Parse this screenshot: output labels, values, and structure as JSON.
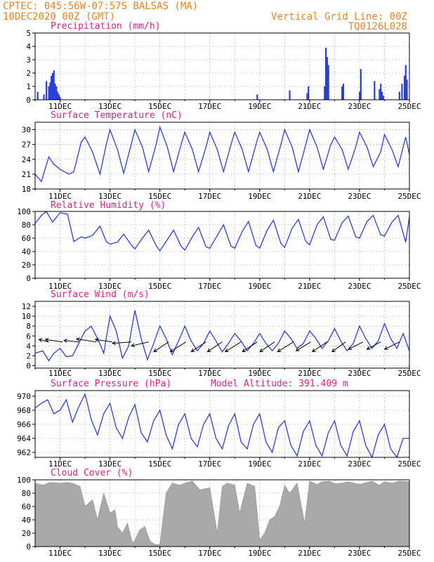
{
  "header": {
    "line1": "CPTEC:   045:56W-07:57S   BALSAS (MA)",
    "line2": "10DEC2020 00Z (GMT)",
    "right1": "Vertical Grid Line: 00Z",
    "right2": "TQ0126L028",
    "title_color": "#e8832a"
  },
  "colors": {
    "title": "#e8832a",
    "panel_title": "#e0208a",
    "series": "#2a3fd8",
    "cloud_fill": "#a9a9a9",
    "grid": "#b0b0b0",
    "wind_arrow": "#000000"
  },
  "x_ticks": [
    "11DEC",
    "13DEC",
    "15DEC",
    "17DEC",
    "19DEC",
    "21DEC",
    "23DEC",
    "25DEC"
  ],
  "chart_data": [
    {
      "id": "precip",
      "type": "bar",
      "title": "Precipitation (mm/h)",
      "ylim": [
        0,
        5
      ],
      "yticks": [
        0,
        1,
        2,
        3,
        4,
        5
      ],
      "x_range": [
        10.0,
        25.0
      ],
      "x": [
        10.1,
        10.35,
        10.45,
        10.55,
        10.6,
        10.65,
        10.7,
        10.75,
        10.8,
        10.85,
        10.9,
        10.95,
        11.0,
        18.9,
        20.2,
        20.9,
        20.95,
        21.6,
        21.65,
        21.7,
        21.75,
        22.3,
        22.35,
        23.0,
        23.05,
        23.6,
        23.8,
        23.85,
        23.9,
        23.95,
        24.6,
        24.7,
        24.8,
        24.85,
        24.9
      ],
      "values": [
        0.6,
        0.4,
        1.4,
        1.0,
        1.3,
        1.8,
        2.0,
        2.2,
        1.2,
        1.0,
        0.6,
        0.4,
        0.2,
        0.4,
        0.7,
        0.5,
        1.0,
        1.0,
        3.9,
        3.2,
        2.6,
        1.0,
        1.2,
        0.6,
        2.3,
        1.4,
        0.8,
        1.2,
        0.6,
        0.3,
        0.6,
        1.2,
        1.8,
        2.6,
        1.5
      ]
    },
    {
      "id": "temp",
      "type": "line",
      "title": "Surface Temperature (nC)",
      "ylim": [
        18,
        31.5
      ],
      "yticks": [
        18,
        21,
        24,
        27,
        30
      ],
      "x_range": [
        10.0,
        25.0
      ],
      "x": [
        10.0,
        10.25,
        10.55,
        10.75,
        11.0,
        11.35,
        11.55,
        11.85,
        12.0,
        12.3,
        12.6,
        12.85,
        13.0,
        13.3,
        13.55,
        13.85,
        14.0,
        14.3,
        14.55,
        14.85,
        15.0,
        15.3,
        15.55,
        15.85,
        16.0,
        16.3,
        16.55,
        16.85,
        17.0,
        17.3,
        17.55,
        17.85,
        18.0,
        18.3,
        18.55,
        18.85,
        19.0,
        19.3,
        19.55,
        19.85,
        20.0,
        20.3,
        20.55,
        20.85,
        21.0,
        21.3,
        21.55,
        21.85,
        22.0,
        22.3,
        22.55,
        22.85,
        23.0,
        23.3,
        23.55,
        23.85,
        24.0,
        24.3,
        24.55,
        24.85,
        25.0
      ],
      "values": [
        21.0,
        19.5,
        24.5,
        23.0,
        22.0,
        21.0,
        21.5,
        27.5,
        28.5,
        25.5,
        21.0,
        27.0,
        30.0,
        26.0,
        21.2,
        27.0,
        30.0,
        26.5,
        21.5,
        27.0,
        30.5,
        26.5,
        21.5,
        27.0,
        29.5,
        26.0,
        21.5,
        26.5,
        29.5,
        26.0,
        21.5,
        27.0,
        29.5,
        26.0,
        21.5,
        27.0,
        29.5,
        26.0,
        21.5,
        27.0,
        30.0,
        26.5,
        21.5,
        27.0,
        30.0,
        26.5,
        22.0,
        27.0,
        28.5,
        26.0,
        22.0,
        26.5,
        29.5,
        26.5,
        22.5,
        25.5,
        29.0,
        26.0,
        22.5,
        28.5,
        25.0
      ]
    },
    {
      "id": "rh",
      "type": "line",
      "title": "Relative Humidity (%)",
      "ylim": [
        0,
        100
      ],
      "yticks": [
        0,
        20,
        40,
        60,
        80,
        100
      ],
      "x_range": [
        10.0,
        25.0
      ],
      "x": [
        10.0,
        10.25,
        10.45,
        10.7,
        11.0,
        11.3,
        11.55,
        11.85,
        12.0,
        12.3,
        12.6,
        12.85,
        13.0,
        13.3,
        13.55,
        13.85,
        14.0,
        14.3,
        14.55,
        14.85,
        15.0,
        15.3,
        15.55,
        15.85,
        16.0,
        16.3,
        16.55,
        16.85,
        17.0,
        17.3,
        17.55,
        17.85,
        18.0,
        18.3,
        18.55,
        18.85,
        19.0,
        19.3,
        19.55,
        19.85,
        20.0,
        20.3,
        20.55,
        20.85,
        21.0,
        21.3,
        21.55,
        21.85,
        22.0,
        22.3,
        22.55,
        22.85,
        23.0,
        23.3,
        23.55,
        23.85,
        24.0,
        24.3,
        24.55,
        24.85,
        25.0
      ],
      "values": [
        82,
        94,
        100,
        84,
        98,
        96,
        55,
        62,
        60,
        64,
        78,
        55,
        51,
        54,
        66,
        50,
        44,
        60,
        72,
        49,
        41,
        58,
        72,
        48,
        42,
        62,
        76,
        47,
        45,
        64,
        80,
        48,
        45,
        70,
        85,
        49,
        45,
        72,
        87,
        52,
        46,
        75,
        88,
        55,
        50,
        80,
        92,
        58,
        57,
        83,
        93,
        62,
        60,
        85,
        94,
        65,
        63,
        84,
        94,
        54,
        92
      ]
    },
    {
      "id": "wind",
      "type": "line",
      "title": "Surface Wind (m/s)",
      "ylim": [
        -0.5,
        13
      ],
      "yticks": [
        0,
        2,
        4,
        6,
        8,
        10,
        12
      ],
      "x_range": [
        10.0,
        25.0
      ],
      "x": [
        10.0,
        10.3,
        10.55,
        10.75,
        11.0,
        11.25,
        11.5,
        11.75,
        12.0,
        12.25,
        12.55,
        12.75,
        13.0,
        13.25,
        13.5,
        13.75,
        14.0,
        14.25,
        14.5,
        14.75,
        15.0,
        15.25,
        15.5,
        15.75,
        16.0,
        16.25,
        16.5,
        16.75,
        17.0,
        17.25,
        17.5,
        17.75,
        18.0,
        18.25,
        18.5,
        18.75,
        19.0,
        19.25,
        19.5,
        19.75,
        20.0,
        20.25,
        20.5,
        20.75,
        21.0,
        21.25,
        21.5,
        21.75,
        22.0,
        22.25,
        22.5,
        22.75,
        23.0,
        23.25,
        23.5,
        23.75,
        24.0,
        24.25,
        24.5,
        24.75,
        25.0
      ],
      "values": [
        2.5,
        3.0,
        1.0,
        2.5,
        3.5,
        1.8,
        2.0,
        4.5,
        7.0,
        8.0,
        5.0,
        2.5,
        10.0,
        7.0,
        1.5,
        4.0,
        11.2,
        5.5,
        1.2,
        4.5,
        8.0,
        5.5,
        2.2,
        5.0,
        8.0,
        5.0,
        3.0,
        4.5,
        7.0,
        5.0,
        2.8,
        4.5,
        6.5,
        5.0,
        3.0,
        4.5,
        6.5,
        4.5,
        3.0,
        4.5,
        7.0,
        5.5,
        3.5,
        4.5,
        7.0,
        5.5,
        3.5,
        5.0,
        7.5,
        5.0,
        3.0,
        4.5,
        8.0,
        5.5,
        3.5,
        5.0,
        8.5,
        5.5,
        3.5,
        6.5,
        3.0
      ]
    },
    {
      "id": "pressure",
      "type": "line",
      "title": "Surface Pressure (hPa)",
      "subtitle": "Model Altitude: 391.409 m",
      "ylim": [
        961.3,
        970.8
      ],
      "yticks": [
        962,
        964,
        966,
        968,
        970
      ],
      "x_range": [
        10.0,
        25.0
      ],
      "x": [
        10.0,
        10.25,
        10.5,
        10.75,
        11.0,
        11.25,
        11.5,
        11.75,
        12.0,
        12.25,
        12.5,
        12.75,
        13.0,
        13.25,
        13.5,
        13.75,
        14.0,
        14.25,
        14.5,
        14.75,
        15.0,
        15.25,
        15.5,
        15.75,
        16.0,
        16.25,
        16.5,
        16.75,
        17.0,
        17.25,
        17.5,
        17.75,
        18.0,
        18.25,
        18.5,
        18.75,
        19.0,
        19.25,
        19.5,
        19.75,
        20.0,
        20.25,
        20.5,
        20.75,
        21.0,
        21.25,
        21.5,
        21.75,
        22.0,
        22.25,
        22.5,
        22.75,
        23.0,
        23.25,
        23.5,
        23.75,
        24.0,
        24.25,
        24.5,
        24.75,
        25.0
      ],
      "values": [
        968.3,
        969.0,
        969.5,
        967.5,
        968.0,
        969.5,
        966.3,
        968.5,
        970.3,
        966.7,
        964.5,
        967.5,
        969.0,
        965.5,
        964.0,
        967.0,
        968.8,
        964.8,
        963.5,
        966.5,
        968.0,
        964.5,
        962.5,
        966.0,
        967.5,
        964.0,
        962.8,
        966.0,
        967.5,
        964.0,
        962.5,
        965.8,
        967.5,
        963.5,
        962.5,
        966.0,
        967.5,
        963.5,
        962.0,
        965.5,
        966.5,
        963.0,
        961.5,
        965.0,
        966.5,
        963.0,
        961.5,
        964.8,
        966.5,
        963.0,
        961.5,
        965.0,
        966.5,
        963.0,
        961.3,
        964.5,
        966.0,
        962.5,
        961.3,
        964.0,
        964.0
      ]
    },
    {
      "id": "cloud",
      "type": "area",
      "title": "Cloud Cover (%)",
      "ylim": [
        0,
        100
      ],
      "yticks": [
        0,
        20,
        40,
        60,
        80,
        100
      ],
      "x_range": [
        10.0,
        25.0
      ],
      "x": [
        10.0,
        10.3,
        10.6,
        11.0,
        11.3,
        11.5,
        11.8,
        12.0,
        12.3,
        12.5,
        12.75,
        13.0,
        13.2,
        13.3,
        13.5,
        13.7,
        13.9,
        14.0,
        14.2,
        14.4,
        14.6,
        14.8,
        15.0,
        15.25,
        15.5,
        15.8,
        16.0,
        16.3,
        16.6,
        17.0,
        17.3,
        17.5,
        17.7,
        18.0,
        18.2,
        18.5,
        18.8,
        19.0,
        19.2,
        19.4,
        19.6,
        19.8,
        20.0,
        20.2,
        20.5,
        20.8,
        21.0,
        21.3,
        21.5,
        21.8,
        22.0,
        22.3,
        22.5,
        22.8,
        23.0,
        23.3,
        23.5,
        23.8,
        24.0,
        24.3,
        24.6,
        25.0
      ],
      "values": [
        95,
        92,
        96,
        95,
        96,
        95,
        90,
        60,
        70,
        40,
        80,
        50,
        55,
        30,
        20,
        35,
        5,
        10,
        25,
        30,
        8,
        3,
        3,
        80,
        95,
        92,
        95,
        98,
        85,
        88,
        20,
        90,
        95,
        92,
        50,
        95,
        90,
        10,
        20,
        40,
        45,
        60,
        92,
        80,
        95,
        35,
        98,
        93,
        97,
        98,
        94,
        95,
        97,
        95,
        93,
        96,
        98,
        92,
        97,
        95,
        98,
        97
      ]
    },
    {
      "id": "wind-vectors",
      "type": "vector",
      "x": [
        10.55,
        11.1,
        11.75,
        12.45,
        13.1,
        13.85,
        14.55,
        15.35,
        16.05,
        16.85,
        17.5,
        18.25,
        18.9,
        19.6,
        20.35,
        21.05,
        21.7,
        22.45,
        23.15,
        23.85,
        24.6
      ],
      "u": [
        -2.0,
        -3.5,
        -3.0,
        -4.0,
        -3.5,
        -3.8,
        -3.5,
        -3.0,
        -3.2,
        -3.0,
        -3.0,
        -3.2,
        -3.0,
        -3.0,
        -3.2,
        -3.0,
        -3.0,
        -2.8,
        -3.0,
        -2.8,
        -3.0
      ],
      "v": [
        0.5,
        0.5,
        0.3,
        0.6,
        0.5,
        -0.3,
        -0.8,
        -2.0,
        -2.0,
        -2.0,
        -2.0,
        -2.0,
        -2.0,
        -2.0,
        -2.0,
        -1.8,
        -2.0,
        -2.0,
        -1.5,
        -1.5,
        -1.5
      ]
    }
  ]
}
